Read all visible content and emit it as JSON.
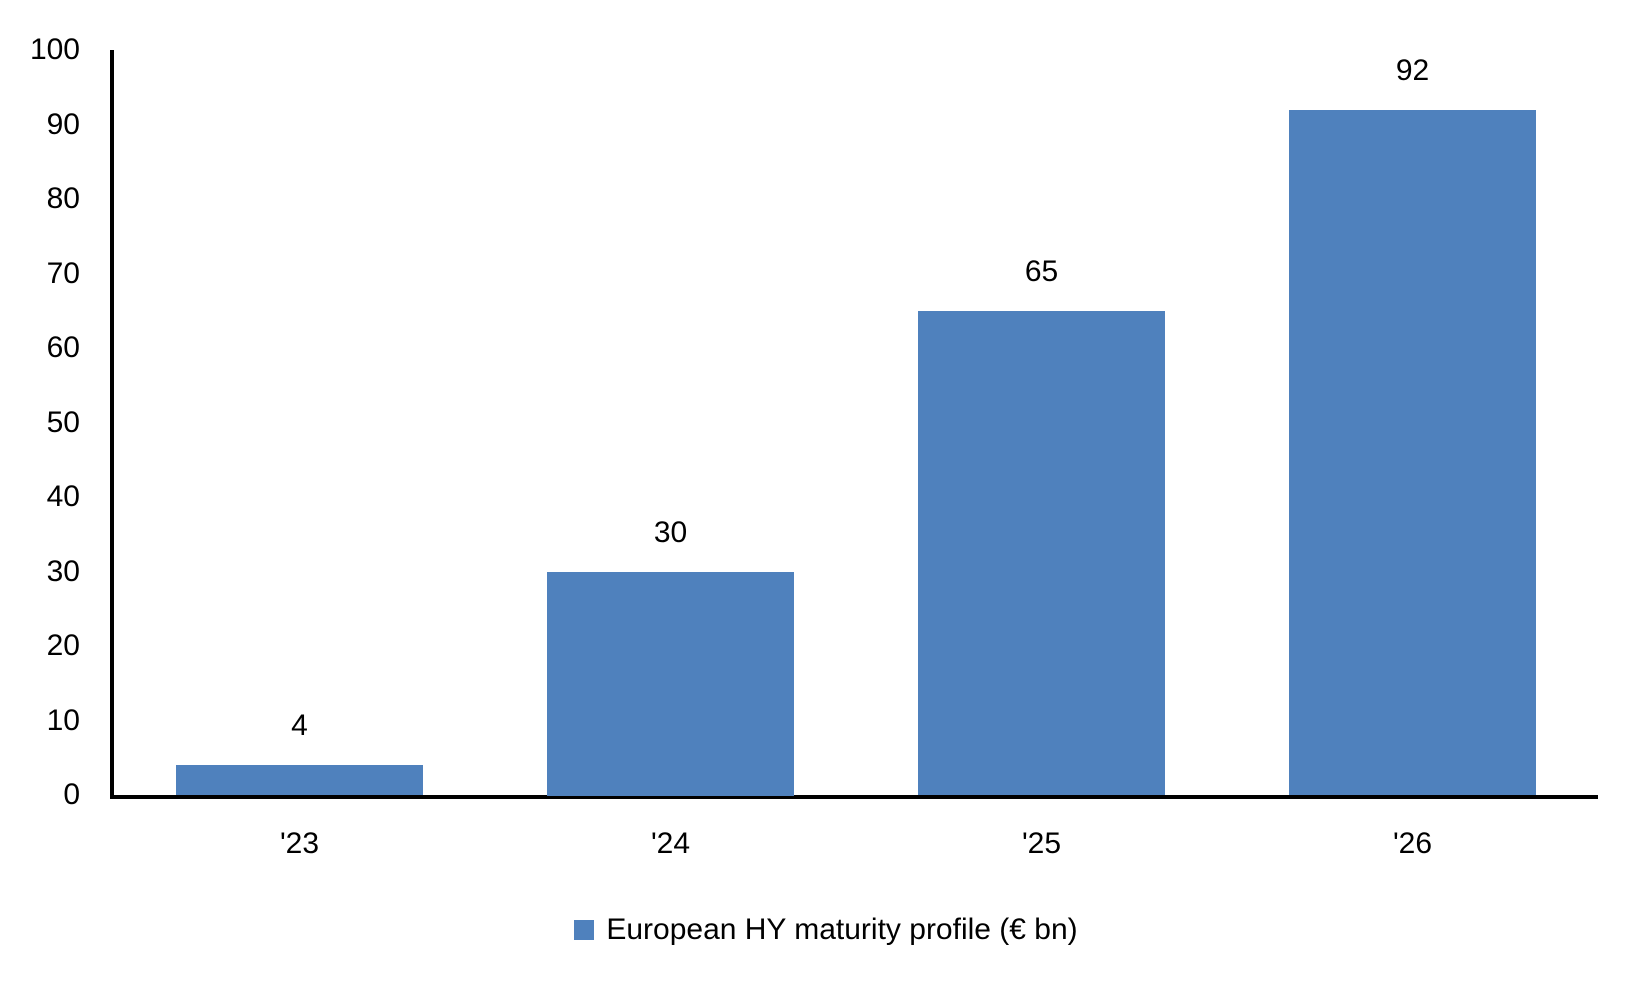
{
  "chart_data": {
    "type": "bar",
    "categories": [
      "'23",
      "'24",
      "'25",
      "'26"
    ],
    "values": [
      4,
      30,
      65,
      92
    ],
    "series_name": "European HY maturity profile (€ bn)",
    "title": "",
    "xlabel": "",
    "ylabel": "",
    "ylim": [
      0,
      100
    ],
    "ytick_step": 10,
    "yticks": [
      0,
      10,
      20,
      30,
      40,
      50,
      60,
      70,
      80,
      90,
      100
    ],
    "data_labels": [
      "4",
      "30",
      "65",
      "92"
    ],
    "grid": false,
    "legend_position": "bottom",
    "colors": {
      "bar": "#4F81BD",
      "axis": "#000000",
      "text": "#000000",
      "background": "#FFFFFF"
    }
  },
  "legend": {
    "marker": "square-icon",
    "marker_color": "#4F81BD"
  }
}
